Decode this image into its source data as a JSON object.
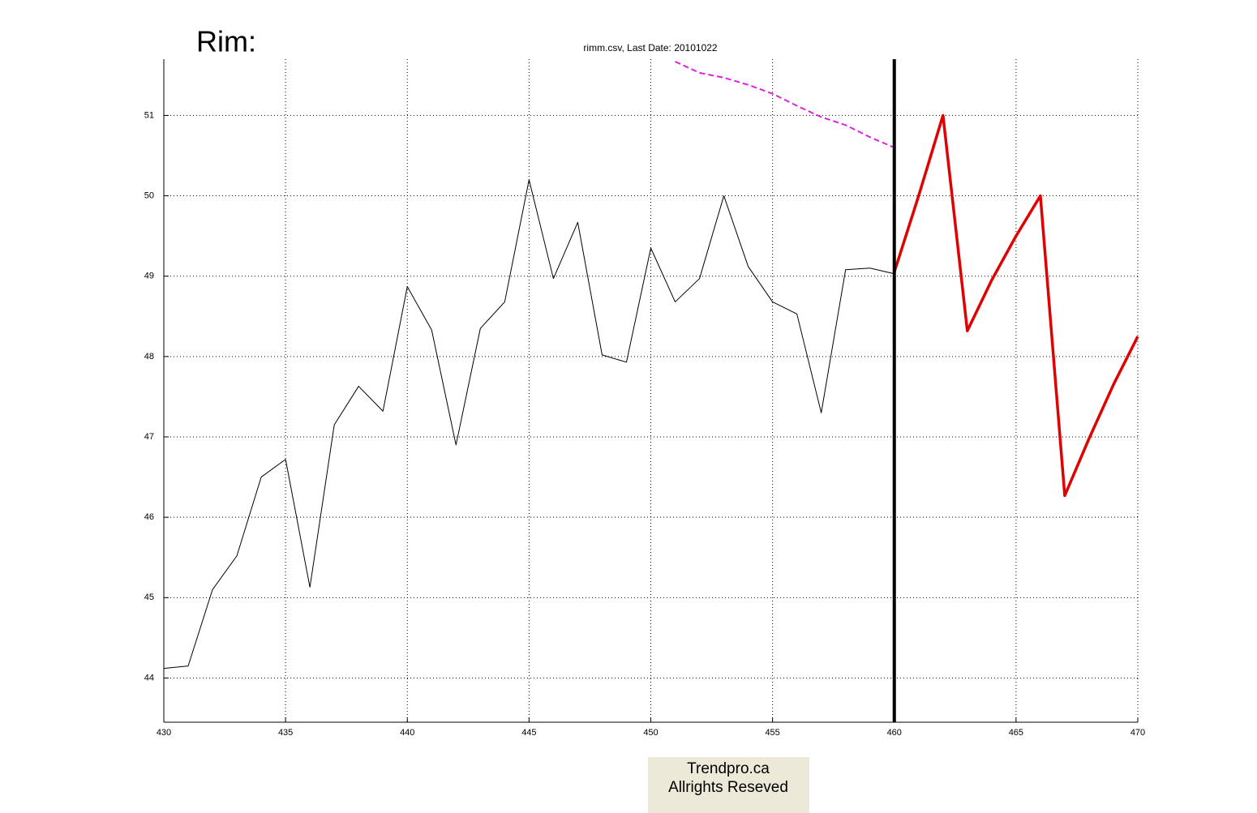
{
  "chart_data": {
    "type": "line",
    "heading": "Rim:",
    "title": "rimm.csv, Last Date: 20101022",
    "xlim": [
      430,
      470
    ],
    "xticks": [
      430,
      435,
      440,
      445,
      450,
      455,
      460,
      465,
      470
    ],
    "ylim": [
      43.45,
      51.7
    ],
    "yticks": [
      44,
      45,
      46,
      47,
      48,
      49,
      50,
      51
    ],
    "grid": true,
    "vertical_line_x": 460,
    "series": [
      {
        "color": "#000000",
        "style": "solid",
        "width": 1,
        "x": [
          430,
          431,
          432,
          433,
          434,
          435,
          436,
          437,
          438,
          439,
          440,
          441,
          442,
          443,
          444,
          445,
          446,
          447,
          448,
          449,
          450,
          451,
          452,
          453,
          454,
          455,
          456,
          457,
          458,
          459,
          460
        ],
        "values": [
          44.12,
          44.15,
          45.1,
          45.52,
          46.5,
          46.72,
          45.13,
          47.15,
          47.63,
          47.32,
          48.87,
          48.33,
          46.9,
          48.35,
          48.68,
          50.2,
          48.97,
          49.67,
          48.02,
          47.93,
          49.35,
          48.68,
          48.97,
          50.0,
          49.12,
          48.68,
          48.53,
          47.3,
          49.08,
          49.1,
          49.03
        ]
      },
      {
        "color": "#e00000",
        "style": "solid",
        "width": 3.5,
        "x": [
          460,
          461,
          462,
          463,
          464,
          465,
          466,
          467,
          468,
          469,
          470
        ],
        "values": [
          49.05,
          50.0,
          51.0,
          48.32,
          48.95,
          49.5,
          50.0,
          46.27,
          46.98,
          47.65,
          48.25
        ]
      },
      {
        "color": "#e020e0",
        "style": "dashed",
        "width": 2,
        "x": [
          451,
          452,
          453,
          454,
          455,
          456,
          457,
          458,
          459,
          460
        ],
        "values": [
          51.67,
          51.53,
          51.47,
          51.38,
          51.27,
          51.12,
          50.98,
          50.88,
          50.73,
          50.6
        ]
      }
    ],
    "footer": [
      "Trendpro.ca",
      "Allrights Reseved"
    ]
  }
}
